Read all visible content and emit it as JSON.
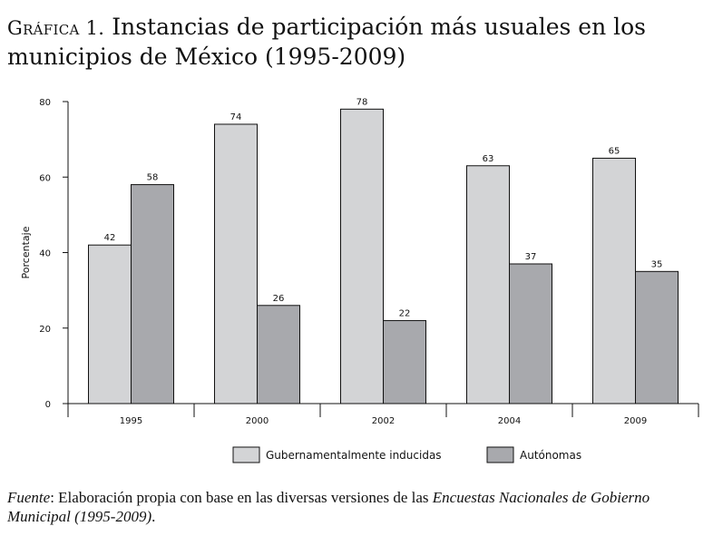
{
  "title": {
    "label": "Gráfica 1.",
    "text": "Instancias de participación más usuales en los municipios de México (1995-2009)"
  },
  "chart_data": {
    "type": "bar",
    "categories": [
      "1995",
      "2000",
      "2002",
      "2004",
      "2009"
    ],
    "series": [
      {
        "name": "Gubernamentalmente inducidas",
        "color": "#d3d4d6",
        "values": [
          42,
          74,
          78,
          63,
          65
        ]
      },
      {
        "name": "Autónomas",
        "color": "#a8a9ad",
        "values": [
          58,
          26,
          22,
          37,
          35
        ]
      }
    ],
    "ylabel": "Porcentaje",
    "xlabel": "",
    "ylim": [
      0,
      80
    ],
    "yticks": [
      0,
      20,
      40,
      60,
      80
    ],
    "data_labels": true,
    "legend": "bottom-center"
  },
  "source": {
    "label": "Fuente",
    "text_before": ": Elaboración propia con base en las diversas versiones de las ",
    "italic_title": "Encuestas Nacionales de Gobierno Municipal (1995-2009)",
    "text_after": "."
  }
}
